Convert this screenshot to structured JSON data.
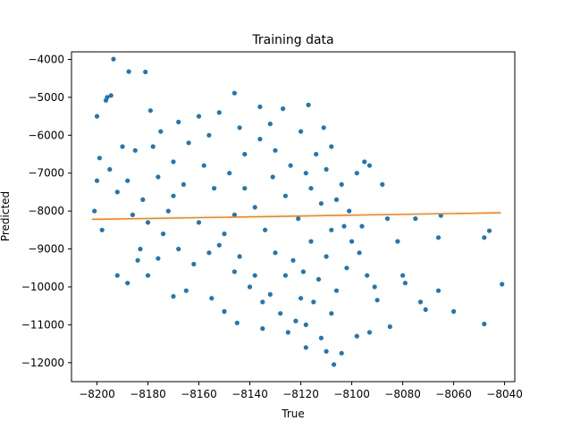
{
  "chart_data": {
    "type": "scatter",
    "title": "Training data",
    "xlabel": "True",
    "ylabel": "Predicted",
    "xlim": [
      -8210,
      -8036
    ],
    "ylim": [
      -12500,
      -3800
    ],
    "xticks": [
      -8200,
      -8180,
      -8160,
      -8140,
      -8120,
      -8100,
      -8080,
      -8060,
      -8040
    ],
    "yticks": [
      -4000,
      -5000,
      -6000,
      -7000,
      -8000,
      -9000,
      -10000,
      -11000,
      -12000
    ],
    "grid": false,
    "colors": {
      "points": "#1f77b4",
      "fit_line": "#ff7f0e"
    },
    "series": [
      {
        "type": "scatter",
        "points": [
          [
            -8193.5,
            -3990
          ],
          [
            -8187.5,
            -4320
          ],
          [
            -8181,
            -4330
          ],
          [
            -8200,
            -5500
          ],
          [
            -8196,
            -5000
          ],
          [
            -8194.5,
            -4950
          ],
          [
            -8196.5,
            -5080
          ],
          [
            -8185,
            -6400
          ],
          [
            -8179,
            -5350
          ],
          [
            -8175,
            -5900
          ],
          [
            -8168,
            -5650
          ],
          [
            -8160,
            -5500
          ],
          [
            -8152,
            -5400
          ],
          [
            -8146,
            -4890
          ],
          [
            -8136,
            -5250
          ],
          [
            -8127,
            -5300
          ],
          [
            -8117,
            -5200
          ],
          [
            -8111,
            -5800
          ],
          [
            -8108,
            -6300
          ],
          [
            -8098,
            -7000
          ],
          [
            -8095,
            -6700
          ],
          [
            -8093,
            -6800
          ],
          [
            -8088,
            -7300
          ],
          [
            -8086,
            -8200
          ],
          [
            -8082,
            -8800
          ],
          [
            -8075,
            -8200
          ],
          [
            -8066,
            -8700
          ],
          [
            -8065,
            -8120
          ],
          [
            -8080,
            -9700
          ],
          [
            -8079,
            -9900
          ],
          [
            -8073,
            -10400
          ],
          [
            -8071,
            -10600
          ],
          [
            -8066,
            -10100
          ],
          [
            -8060,
            -10650
          ],
          [
            -8048,
            -8700
          ],
          [
            -8046,
            -8520
          ],
          [
            -8048,
            -10980
          ],
          [
            -8041,
            -9930
          ],
          [
            -8090,
            -10350
          ],
          [
            -8085,
            -11050
          ],
          [
            -8093,
            -11200
          ],
          [
            -8098,
            -11300
          ],
          [
            -8104,
            -11750
          ],
          [
            -8107,
            -12050
          ],
          [
            -8110,
            -11700
          ],
          [
            -8112,
            -11350
          ],
          [
            -8118,
            -11600
          ],
          [
            -8125,
            -11200
          ],
          [
            -8135,
            -11100
          ],
          [
            -8145,
            -10950
          ],
          [
            -8150,
            -10650
          ],
          [
            -8155,
            -10300
          ],
          [
            -8165,
            -10100
          ],
          [
            -8170,
            -10250
          ],
          [
            -8180,
            -9700
          ],
          [
            -8188,
            -9900
          ],
          [
            -8192,
            -9700
          ],
          [
            -8176,
            -9250
          ],
          [
            -8183,
            -9000
          ],
          [
            -8198,
            -8500
          ],
          [
            -8201,
            -8000
          ],
          [
            -8200,
            -7200
          ],
          [
            -8199,
            -6600
          ],
          [
            -8188,
            -7200
          ],
          [
            -8170,
            -7600
          ],
          [
            -8160,
            -8300
          ],
          [
            -8152,
            -8900
          ],
          [
            -8146,
            -9600
          ],
          [
            -8140,
            -10000
          ],
          [
            -8135,
            -10400
          ],
          [
            -8128,
            -10700
          ],
          [
            -8122,
            -10900
          ],
          [
            -8118,
            -11000
          ],
          [
            -8115,
            -10400
          ],
          [
            -8113,
            -9800
          ],
          [
            -8110,
            -9200
          ],
          [
            -8108,
            -8500
          ],
          [
            -8112,
            -7800
          ],
          [
            -8118,
            -7000
          ],
          [
            -8124,
            -6800
          ],
          [
            -8130,
            -6400
          ],
          [
            -8136,
            -6100
          ],
          [
            -8142,
            -6500
          ],
          [
            -8148,
            -7000
          ],
          [
            -8154,
            -7400
          ],
          [
            -8158,
            -6800
          ],
          [
            -8164,
            -6200
          ],
          [
            -8170,
            -6700
          ],
          [
            -8176,
            -7100
          ],
          [
            -8182,
            -7700
          ],
          [
            -8186,
            -8100
          ],
          [
            -8192,
            -7500
          ],
          [
            -8195,
            -6900
          ],
          [
            -8190,
            -6300
          ],
          [
            -8178,
            -6300
          ],
          [
            -8156,
            -6000
          ],
          [
            -8144,
            -5800
          ],
          [
            -8132,
            -5700
          ],
          [
            -8120,
            -5900
          ],
          [
            -8114,
            -6500
          ],
          [
            -8104,
            -7300
          ],
          [
            -8101,
            -8000
          ],
          [
            -8100,
            -8800
          ],
          [
            -8102,
            -9500
          ],
          [
            -8106,
            -10100
          ],
          [
            -8108,
            -10700
          ],
          [
            -8120,
            -10300
          ],
          [
            -8126,
            -9700
          ],
          [
            -8130,
            -9100
          ],
          [
            -8134,
            -8500
          ],
          [
            -8138,
            -7900
          ],
          [
            -8142,
            -7400
          ],
          [
            -8146,
            -8100
          ],
          [
            -8150,
            -8600
          ],
          [
            -8156,
            -9100
          ],
          [
            -8162,
            -9400
          ],
          [
            -8168,
            -9000
          ],
          [
            -8174,
            -8600
          ],
          [
            -8180,
            -8300
          ],
          [
            -8184,
            -9300
          ],
          [
            -8172,
            -8000
          ],
          [
            -8166,
            -7300
          ],
          [
            -8144,
            -9200
          ],
          [
            -8138,
            -9700
          ],
          [
            -8132,
            -10200
          ],
          [
            -8116,
            -8800
          ],
          [
            -8121,
            -8200
          ],
          [
            -8126,
            -7600
          ],
          [
            -8131,
            -7100
          ],
          [
            -8123,
            -9300
          ],
          [
            -8119,
            -9600
          ],
          [
            -8116,
            -7400
          ],
          [
            -8110,
            -6900
          ],
          [
            -8106,
            -7700
          ],
          [
            -8103,
            -8400
          ],
          [
            -8097,
            -9100
          ],
          [
            -8094,
            -9700
          ],
          [
            -8091,
            -10000
          ],
          [
            -8096,
            -8400
          ]
        ]
      },
      {
        "type": "line",
        "points": [
          [
            -8202,
            -8220
          ],
          [
            -8041.5,
            -8045
          ]
        ]
      }
    ]
  }
}
